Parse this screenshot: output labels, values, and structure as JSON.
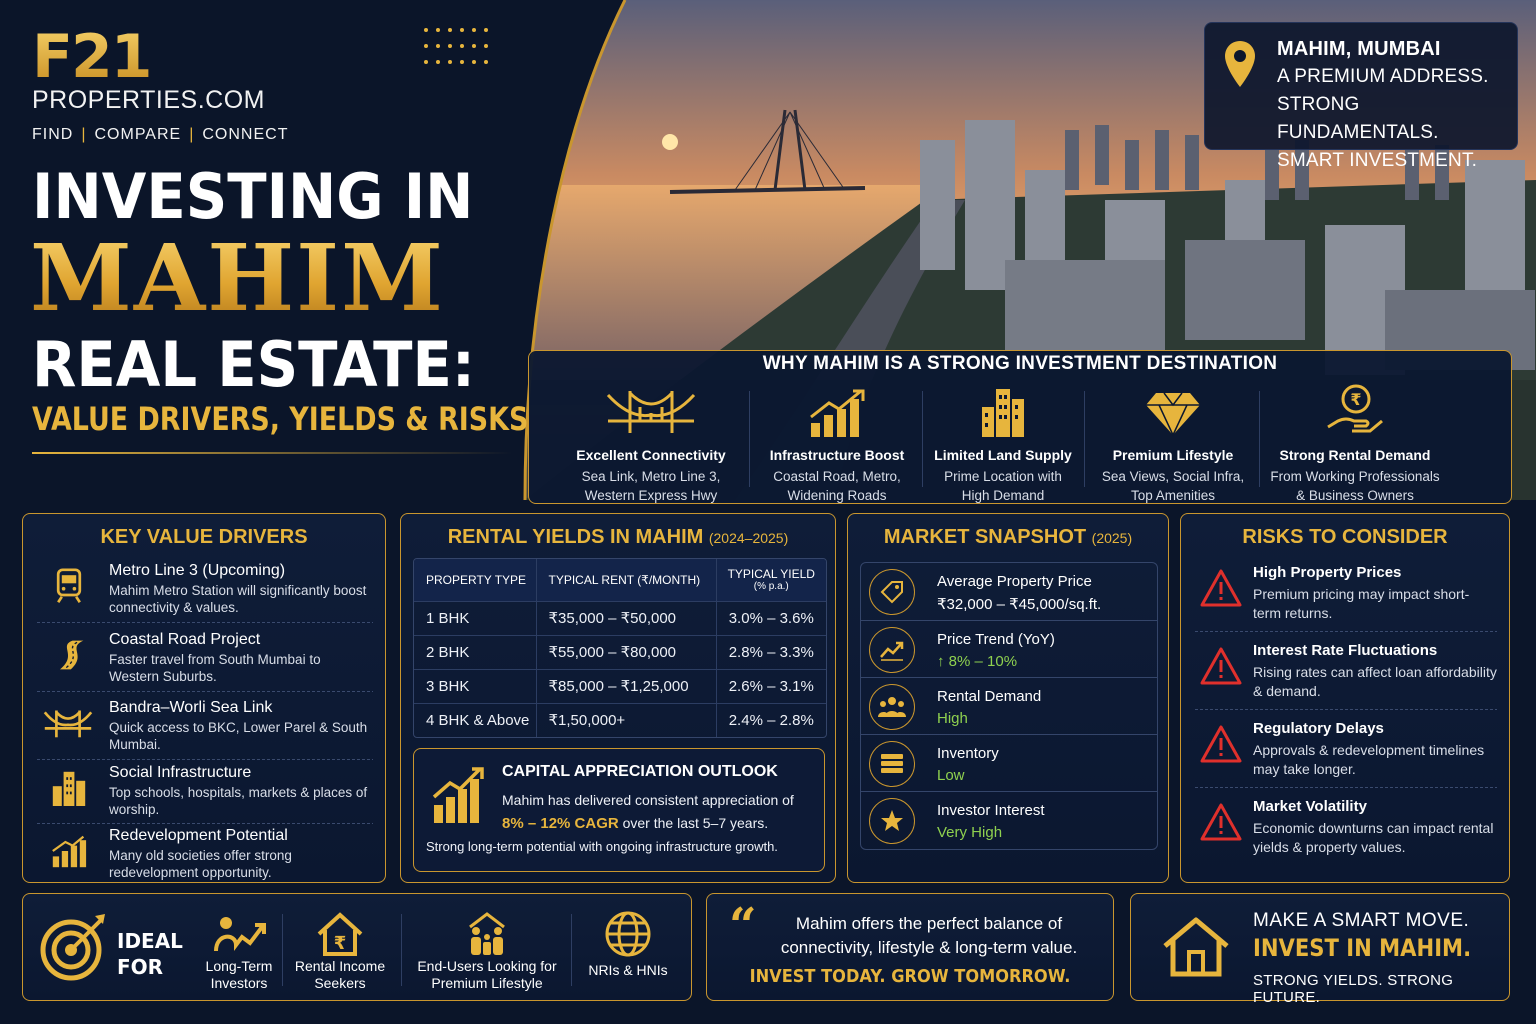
{
  "brand": {
    "logo": "F21",
    "domain": "PROPERTIES.COM",
    "tagline": [
      "FIND",
      "COMPARE",
      "CONNECT"
    ]
  },
  "title": {
    "line1": "INVESTING IN",
    "line2": "MAHIM",
    "line3": "REAL ESTATE:",
    "subtitle": "VALUE DRIVERS, YIELDS & RISKS"
  },
  "location": {
    "name": "MAHIM, MUMBAI",
    "lines": [
      "A PREMIUM ADDRESS.",
      "STRONG FUNDAMENTALS.",
      "SMART INVESTMENT."
    ]
  },
  "why": {
    "title": "WHY MAHIM IS A STRONG INVESTMENT DESTINATION",
    "items": [
      {
        "icon": "bridge-icon",
        "heading": "Excellent Connectivity",
        "line1": "Sea Link, Metro Line 3,",
        "line2": "Western Express Hwy"
      },
      {
        "icon": "growth-chart-icon",
        "heading": "Infrastructure Boost",
        "line1": "Coastal Road, Metro,",
        "line2": "Widening Roads"
      },
      {
        "icon": "buildings-icon",
        "heading": "Limited Land Supply",
        "line1": "Prime Location with",
        "line2": "High Demand"
      },
      {
        "icon": "diamond-icon",
        "heading": "Premium Lifestyle",
        "line1": "Sea Views, Social Infra,",
        "line2": "Top Amenities"
      },
      {
        "icon": "rupee-hand-icon",
        "heading": "Strong Rental Demand",
        "line1": "From Working Professionals",
        "line2": "& Business Owners"
      }
    ]
  },
  "drivers": {
    "title": "KEY VALUE DRIVERS",
    "items": [
      {
        "icon": "metro-train-icon",
        "heading": "Metro Line 3 (Upcoming)",
        "desc": "Mahim Metro Station will significantly boost connectivity & values."
      },
      {
        "icon": "road-icon",
        "heading": "Coastal Road Project",
        "desc": "Faster travel from South Mumbai to Western Suburbs."
      },
      {
        "icon": "bridge-icon",
        "heading": "Bandra–Worli Sea Link",
        "desc": "Quick access to BKC, Lower Parel & South Mumbai."
      },
      {
        "icon": "buildings-icon",
        "heading": "Social Infrastructure",
        "desc": "Top schools, hospitals, markets & places of worship."
      },
      {
        "icon": "growth-chart-icon",
        "heading": "Redevelopment Potential",
        "desc": "Many old societies offer strong redevelopment opportunity."
      }
    ]
  },
  "yields": {
    "title": "RENTAL YIELDS IN MAHIM",
    "period": "(2024–2025)",
    "headers": {
      "type": "PROPERTY TYPE",
      "rent": "TYPICAL RENT (₹/MONTH)",
      "yield": "TYPICAL YIELD",
      "yield_unit": "(% p.a.)"
    },
    "rows": [
      {
        "type": "1 BHK",
        "rent": "₹35,000 – ₹50,000",
        "yield": "3.0% – 3.6%"
      },
      {
        "type": "2 BHK",
        "rent": "₹55,000 – ₹80,000",
        "yield": "2.8% – 3.3%"
      },
      {
        "type": "3 BHK",
        "rent": "₹85,000 – ₹1,25,000",
        "yield": "2.6% – 3.1%"
      },
      {
        "type": "4 BHK & Above",
        "rent": "₹1,50,000+",
        "yield": "2.4% – 2.8%"
      }
    ],
    "capital": {
      "title": "CAPITAL APPRECIATION OUTLOOK",
      "body_pre": "Mahim has delivered consistent appreciation of",
      "cagr": "8% – 12% CAGR",
      "body_post": "over the last 5–7 years.",
      "foot": "Strong long-term potential with ongoing infrastructure growth."
    }
  },
  "snapshot": {
    "title": "MARKET SNAPSHOT",
    "period": "(2025)",
    "items": [
      {
        "icon": "price-tag-icon",
        "label": "Average Property Price",
        "value": "₹32,000 – ₹45,000/sq.ft.",
        "color": "#ffffff"
      },
      {
        "icon": "trend-up-icon",
        "label": "Price Trend (YoY)",
        "value": "↑ 8% – 10%",
        "color": "#8fd14f"
      },
      {
        "icon": "people-icon",
        "label": "Rental Demand",
        "value": "High",
        "color": "#8fd14f"
      },
      {
        "icon": "stack-icon",
        "label": "Inventory",
        "value": "Low",
        "color": "#8fd14f"
      },
      {
        "icon": "star-icon",
        "label": "Investor Interest",
        "value": "Very High",
        "color": "#8fd14f"
      }
    ]
  },
  "risks": {
    "title": "RISKS TO CONSIDER",
    "items": [
      {
        "icon": "warning-icon",
        "heading": "High Property Prices",
        "desc": "Premium pricing may impact short-term returns."
      },
      {
        "icon": "warning-icon",
        "heading": "Interest Rate Fluctuations",
        "desc": "Rising rates can affect loan affordability & demand."
      },
      {
        "icon": "warning-icon",
        "heading": "Regulatory Delays",
        "desc": "Approvals & redevelopment timelines may take longer."
      },
      {
        "icon": "warning-icon",
        "heading": "Market Volatility",
        "desc": "Economic downturns can impact rental yields & property values."
      }
    ]
  },
  "ideal": {
    "label1": "IDEAL",
    "label2": "FOR",
    "items": [
      {
        "icon": "investor-icon",
        "line1": "Long-Term",
        "line2": "Investors"
      },
      {
        "icon": "rupee-house-icon",
        "line1": "Rental Income",
        "line2": "Seekers"
      },
      {
        "icon": "family-icon",
        "line1": "End-Users Looking for",
        "line2": "Premium Lifestyle"
      },
      {
        "icon": "globe-icon",
        "line1": "NRIs & HNIs",
        "line2": ""
      }
    ]
  },
  "quote": {
    "mark": "“",
    "text": "Mahim offers the perfect balance of connectivity, lifestyle & long-term value.",
    "cta": "INVEST TODAY. GROW TOMORROW."
  },
  "cta": {
    "line1": "MAKE A SMART MOVE.",
    "line2": "INVEST IN MAHIM.",
    "line3": "STRONG YIELDS. STRONG FUTURE."
  },
  "colors": {
    "accent": "#e7b53d",
    "background": "#0b1529",
    "positive": "#8fd14f",
    "risk": "#e0302c"
  }
}
